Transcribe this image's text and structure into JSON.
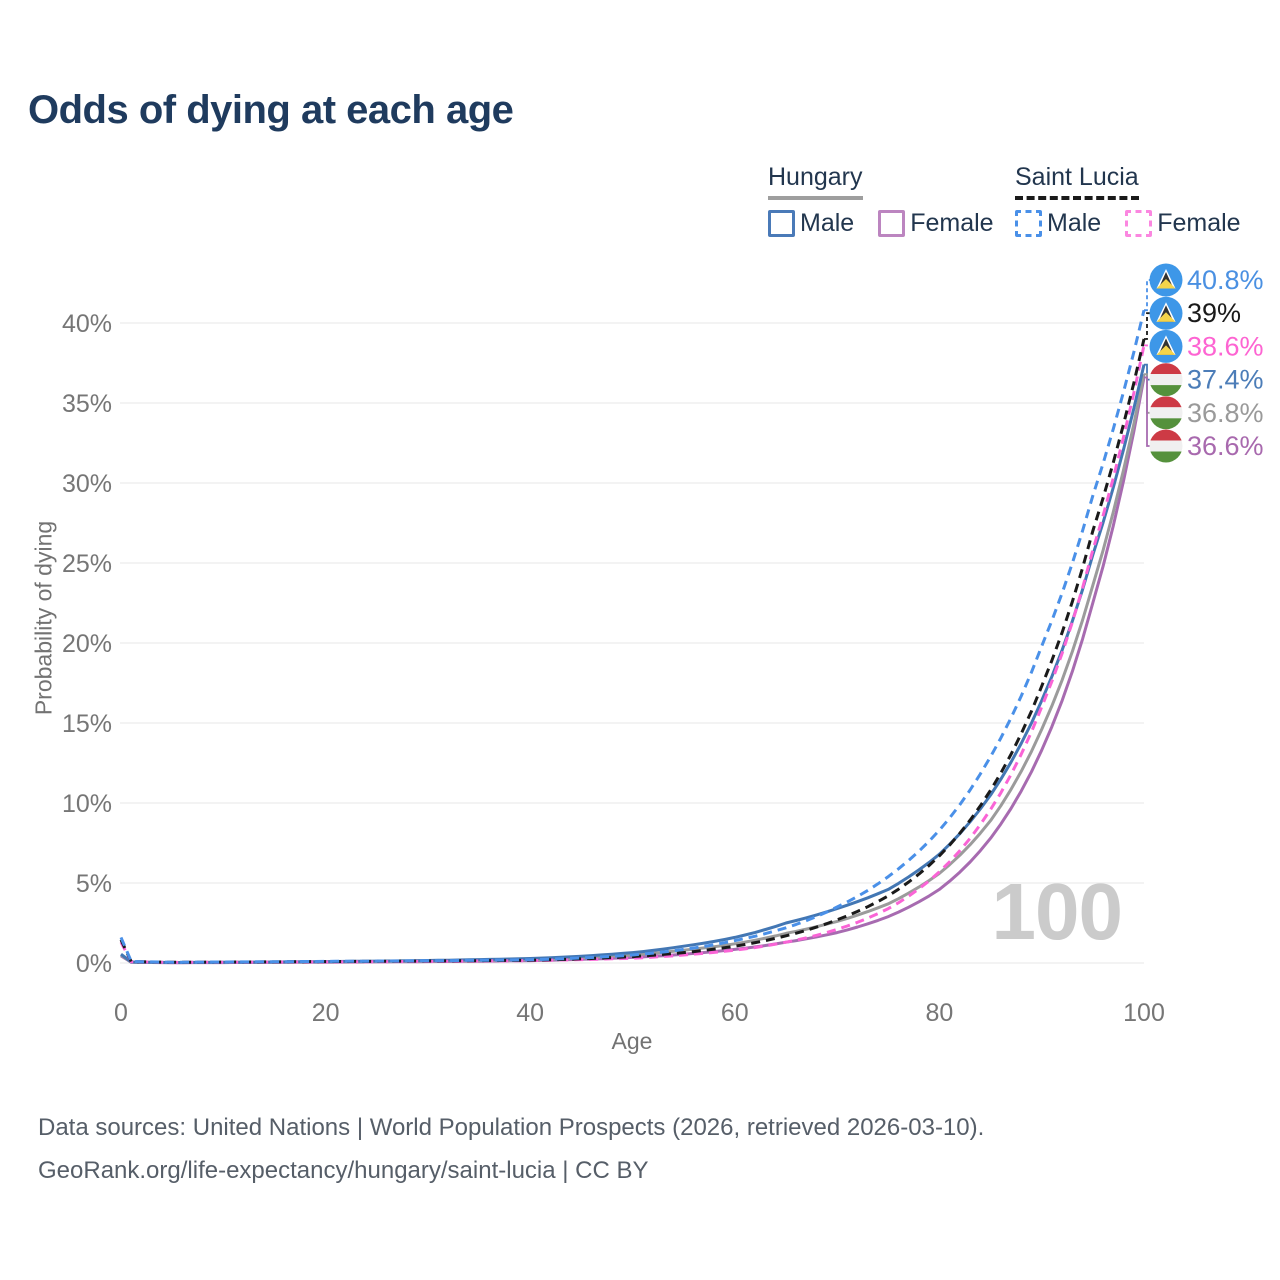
{
  "title": "Odds of dying at each age",
  "legend": {
    "groups": [
      {
        "name": "Hungary",
        "line_style": "solid",
        "line_color": "#9e9e9e",
        "items": [
          {
            "label": "Male",
            "color": "#4a7ab8"
          },
          {
            "label": "Female",
            "color": "#bc85c0"
          }
        ]
      },
      {
        "name": "Saint Lucia",
        "line_style": "dashed",
        "line_color": "#1a1a1a",
        "items": [
          {
            "label": "Male",
            "color": "#4a90e8"
          },
          {
            "label": "Female",
            "color": "#fb87e0"
          }
        ]
      }
    ]
  },
  "chart_data": {
    "type": "line",
    "title": "Odds of dying at each age",
    "xlabel": "Age",
    "ylabel": "Probability of dying",
    "xlim": [
      0,
      100
    ],
    "ylim_percent": [
      0,
      43
    ],
    "x_ticks": [
      "0",
      "20",
      "40",
      "60",
      "80",
      "100"
    ],
    "y_ticks": [
      "0%",
      "5%",
      "10%",
      "15%",
      "20%",
      "25%",
      "30%",
      "35%",
      "40%"
    ],
    "grid": "horizontal",
    "legend_position": "top-right",
    "hover_age_indicator": "100",
    "anchor_ages": [
      0,
      1,
      5,
      20,
      40,
      50,
      55,
      60,
      65,
      70,
      75,
      80,
      85,
      90,
      95,
      100
    ],
    "series": [
      {
        "name": "Hungary Female",
        "country": "hungary",
        "sex": "female",
        "color": "#a76bb0",
        "dashed": false,
        "values": [
          0.45,
          0.05,
          0.02,
          0.05,
          0.15,
          0.35,
          0.55,
          0.85,
          1.3,
          1.9,
          2.9,
          4.6,
          7.8,
          13.3,
          22.5,
          36.6
        ],
        "end_label": {
          "text": "36.6%",
          "color": "#a869ae",
          "flag": "hungary"
        }
      },
      {
        "name": "Hungary",
        "country": "hungary",
        "sex": "both",
        "color": "#9b9b9b",
        "dashed": false,
        "values": [
          0.5,
          0.05,
          0.03,
          0.07,
          0.2,
          0.5,
          0.8,
          1.2,
          1.85,
          2.6,
          3.7,
          5.6,
          8.9,
          14.6,
          23.6,
          36.8
        ],
        "end_label": {
          "text": "36.8%",
          "color": "#9a9a9a",
          "flag": "hungary"
        }
      },
      {
        "name": "Hungary Male",
        "country": "hungary",
        "sex": "male",
        "color": "#4377b4",
        "dashed": false,
        "values": [
          0.55,
          0.06,
          0.03,
          0.09,
          0.28,
          0.65,
          1.05,
          1.6,
          2.5,
          3.4,
          4.6,
          6.8,
          10.5,
          16.4,
          25.5,
          37.4
        ],
        "end_label": {
          "text": "37.4%",
          "color": "#4c7db8",
          "flag": "hungary"
        }
      },
      {
        "name": "Saint Lucia Female",
        "country": "saint-lucia",
        "sex": "female",
        "color": "#fa64d6",
        "dashed": true,
        "values": [
          1.3,
          0.08,
          0.04,
          0.07,
          0.15,
          0.3,
          0.5,
          0.8,
          1.3,
          2.1,
          3.4,
          5.7,
          9.6,
          16.0,
          25.8,
          38.6
        ],
        "end_label": {
          "text": "38.6%",
          "color": "#fd64d2",
          "flag": "saint-lucia"
        }
      },
      {
        "name": "Saint Lucia",
        "country": "saint-lucia",
        "sex": "both",
        "color": "#1a1a1a",
        "dashed": true,
        "values": [
          1.45,
          0.09,
          0.045,
          0.09,
          0.17,
          0.4,
          0.65,
          1.05,
          1.7,
          2.7,
          4.2,
          6.7,
          10.8,
          17.3,
          27.0,
          39.0
        ],
        "end_label": {
          "text": "39%",
          "color": "#1a1a1a",
          "flag": "saint-lucia"
        }
      },
      {
        "name": "Saint Lucia Male",
        "country": "saint-lucia",
        "sex": "male",
        "color": "#4a90e8",
        "dashed": true,
        "values": [
          1.6,
          0.1,
          0.05,
          0.1,
          0.2,
          0.5,
          0.85,
          1.4,
          2.2,
          3.5,
          5.4,
          8.3,
          12.9,
          19.8,
          29.2,
          40.8
        ],
        "end_label": {
          "text": "40.8%",
          "color": "#4a90e2",
          "flag": "saint-lucia"
        }
      }
    ]
  },
  "flag_colors": {
    "hungary": {
      "red": "#cd3a45",
      "white": "#f0f0f0",
      "green": "#55913c"
    },
    "saint_lucia": {
      "blue": "#3d97e8",
      "yellow": "#f5d44a",
      "black": "#333333",
      "white": "#ffffff"
    }
  },
  "footer": {
    "line1": "Data sources: United Nations | World Population Prospects (2026, retrieved 2026-03-10).",
    "line2": "GeoRank.org/life-expectancy/hungary/saint-lucia | CC BY"
  }
}
